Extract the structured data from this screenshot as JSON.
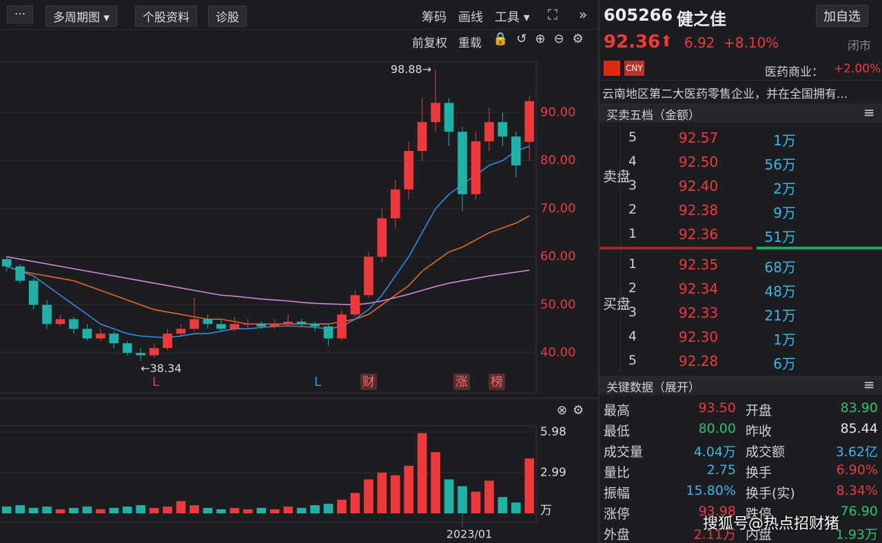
{
  "toolbar": {
    "more": "···",
    "multi_period": "多周期图",
    "stock_info": "个股资料",
    "diagnose": "诊股",
    "chips": "筹码",
    "draw": "画线",
    "tools": "工具"
  },
  "chart_toolbar": {
    "adjust": "前复权",
    "reload": "重载"
  },
  "chart_data": [
    {
      "type": "candlestick",
      "categories": [
        null,
        null,
        null,
        null,
        null,
        null,
        null,
        null,
        null,
        null,
        null,
        null,
        null,
        null,
        null,
        null,
        null,
        null,
        null,
        null,
        null,
        null,
        null,
        null,
        null,
        null,
        null,
        null,
        null,
        null,
        null,
        null,
        null,
        null,
        null,
        null,
        null,
        null,
        null,
        null
      ],
      "open": [
        59.5,
        58,
        55,
        50,
        46,
        47,
        45,
        43,
        44,
        42,
        40,
        39.5,
        41,
        44,
        45,
        47,
        46,
        45,
        46,
        46,
        45.5,
        46,
        46.5,
        46,
        45.5,
        43,
        48,
        52,
        60,
        68,
        74,
        82,
        88,
        92,
        86,
        73,
        84,
        88,
        85,
        83.9
      ],
      "high": [
        60,
        58.5,
        55.5,
        51,
        48,
        47.5,
        46,
        45,
        44.5,
        42.5,
        41,
        42,
        45,
        46,
        51.5,
        48,
        47,
        47.5,
        47,
        46.5,
        47,
        48,
        47,
        46.5,
        46,
        49,
        53,
        61,
        70,
        76,
        84,
        93,
        98.88,
        93,
        87,
        86,
        91,
        90,
        86,
        93.5
      ],
      "low": [
        57,
        54.5,
        49,
        45,
        45.5,
        44,
        42.5,
        42.5,
        41,
        39.5,
        38.34,
        39,
        40.5,
        43.5,
        44.5,
        45,
        44.5,
        44.5,
        45,
        45,
        45,
        45.5,
        45.5,
        44.5,
        41.5,
        42.5,
        47.5,
        51.5,
        59,
        66,
        72,
        80,
        86,
        83,
        69.5,
        72,
        82,
        83,
        76.5,
        80
      ],
      "close": [
        58,
        55,
        50,
        46,
        47,
        45,
        43,
        44,
        42,
        40,
        39.5,
        41,
        44,
        45,
        47,
        46,
        45,
        46,
        46,
        45.5,
        46,
        46.5,
        46,
        45.5,
        43,
        48,
        52,
        60,
        68,
        74,
        82,
        88,
        92,
        86,
        73,
        84,
        88,
        85,
        79,
        92.36
      ],
      "up_color": "#f0393a",
      "down_color": "#1fb3a8",
      "ylim": [
        31.7,
        100.5
      ],
      "yticks": [
        {
          "value": 40,
          "label": "40.00"
        },
        {
          "value": 50,
          "label": "50.00"
        },
        {
          "value": 60,
          "label": "60.00"
        },
        {
          "value": 70,
          "label": "70.00"
        },
        {
          "value": 80,
          "label": "80.00"
        },
        {
          "value": 90,
          "label": "90.00"
        }
      ],
      "grid": true,
      "annotations": [
        "98.88→",
        "←38.34"
      ],
      "events": [
        {
          "text": "L",
          "color": "#e0443e"
        },
        {
          "text": "L",
          "color": "#2e9fe0"
        },
        {
          "text": "财",
          "color": "#e0443e"
        },
        {
          "text": "涨",
          "color": "#e0443e"
        },
        {
          "text": "榜",
          "color": "#e0443e"
        }
      ],
      "moving_averages": [
        {
          "color": "#e86a1c",
          "values": [
            58,
            57,
            56.5,
            56,
            55.5,
            55,
            54,
            53,
            52,
            51,
            50,
            49,
            48.5,
            48,
            47.5,
            47,
            47,
            46.5,
            46,
            46,
            46,
            46,
            46,
            46,
            46,
            46.5,
            47,
            48,
            50,
            52,
            54,
            57,
            59,
            61,
            62,
            63.5,
            65,
            66,
            67,
            68.5
          ]
        },
        {
          "color": "#d48ad6",
          "values": [
            60,
            59.5,
            59,
            58.5,
            58,
            57.5,
            57,
            56.5,
            56,
            55.5,
            55,
            54.5,
            54,
            53.5,
            53,
            52.5,
            52,
            51.8,
            51.5,
            51.2,
            51,
            50.8,
            50.5,
            50.3,
            50.2,
            50.1,
            50,
            50.3,
            50.8,
            51.5,
            52.2,
            53,
            53.8,
            54.5,
            55,
            55.5,
            56,
            56.4,
            56.8,
            57.2
          ]
        },
        {
          "color": "#2f8ee0",
          "values": [
            58,
            57,
            56,
            54,
            52,
            50,
            48,
            46,
            45,
            44,
            43.5,
            43.3,
            43.2,
            43.5,
            44,
            44,
            44.5,
            45,
            45,
            45.3,
            45.5,
            45.6,
            45.5,
            45.3,
            45,
            45.5,
            47,
            49,
            52,
            56,
            60,
            65,
            70,
            73,
            75,
            77,
            79,
            80,
            82,
            83
          ]
        }
      ]
    },
    {
      "type": "bar",
      "categories": [
        null,
        null,
        null,
        null,
        null,
        null,
        null,
        null,
        null,
        null,
        null,
        null,
        null,
        null,
        null,
        null,
        null,
        null,
        null,
        null,
        null,
        null,
        null,
        null,
        null,
        null,
        null,
        null,
        null,
        null,
        null,
        null,
        null,
        null,
        "2023/01",
        null,
        null,
        null,
        null,
        null
      ],
      "values": [
        0.5,
        0.6,
        0.4,
        0.5,
        0.3,
        0.4,
        0.5,
        0.3,
        0.4,
        0.5,
        0.6,
        0.4,
        0.5,
        0.9,
        0.6,
        0.4,
        0.3,
        0.4,
        0.3,
        0.4,
        0.3,
        0.5,
        0.4,
        0.6,
        0.7,
        1.0,
        1.5,
        2.5,
        3.0,
        2.8,
        3.5,
        5.9,
        4.5,
        2.5,
        2.0,
        1.6,
        2.4,
        1.2,
        0.8,
        4.04
      ],
      "ylim": [
        0,
        5.98
      ],
      "yticks": [
        2.99,
        5.98
      ],
      "unit": "万",
      "up_color": "#f0393a",
      "down_color": "#1fb3a8"
    }
  ],
  "quote": {
    "code": "605266",
    "name": "健之佳",
    "add_watchlist": "加自选",
    "price": "92.36",
    "change": "6.92",
    "change_pct": "+8.10%",
    "status": "闭市",
    "currency": "CNY",
    "industry": "医药商业：",
    "industry_change": "+2.00%",
    "description": "云南地区第二大医药零售企业，并在全国拥有..."
  },
  "order_book": {
    "title": "买卖五档（金额）",
    "sell_label": "卖盘",
    "buy_label": "买盘",
    "asks": [
      [
        "5",
        "92.57",
        "1万"
      ],
      [
        "4",
        "92.50",
        "56万"
      ],
      [
        "3",
        "92.40",
        "2万"
      ],
      [
        "2",
        "92.38",
        "9万"
      ],
      [
        "1",
        "92.36",
        "51万"
      ]
    ],
    "bids": [
      [
        "1",
        "92.35",
        "68万"
      ],
      [
        "2",
        "92.34",
        "48万"
      ],
      [
        "3",
        "92.33",
        "21万"
      ],
      [
        "4",
        "92.30",
        "1万"
      ],
      [
        "5",
        "92.28",
        "6万"
      ]
    ]
  },
  "key_data": {
    "title": "关键数据（展开）",
    "rows": [
      [
        {
          "label": "最高",
          "value": "93.50",
          "color": "#f0393a"
        },
        {
          "label": "开盘",
          "value": "83.90",
          "color": "#2bc46a"
        }
      ],
      [
        {
          "label": "最低",
          "value": "80.00",
          "color": "#2bc46a"
        },
        {
          "label": "昨收",
          "value": "85.44",
          "color": "#e8e8e8"
        }
      ],
      [
        {
          "label": "成交量",
          "value": "4.04万",
          "color": "#3ab6e8"
        },
        {
          "label": "成交额",
          "value": "3.62亿",
          "color": "#3ab6e8"
        }
      ],
      [
        {
          "label": "量比",
          "value": "2.75",
          "color": "#3ab6e8"
        },
        {
          "label": "换手",
          "value": "6.90%",
          "color": "#f0393a"
        }
      ],
      [
        {
          "label": "振幅",
          "value": "15.80%",
          "color": "#3ab6e8"
        },
        {
          "label": "换手(实)",
          "value": "8.34%",
          "color": "#f0393a"
        }
      ],
      [
        {
          "label": "涨停",
          "value": "93.98",
          "color": "#f0393a"
        },
        {
          "label": "跌停",
          "value": "76.90",
          "color": "#2bc46a"
        }
      ],
      [
        {
          "label": "外盘",
          "value": "2.11万",
          "color": "#f0393a"
        },
        {
          "label": "内盘",
          "value": "1.93万",
          "color": "#2bc46a"
        }
      ]
    ]
  },
  "watermark": "搜狐号@热点招财猪"
}
